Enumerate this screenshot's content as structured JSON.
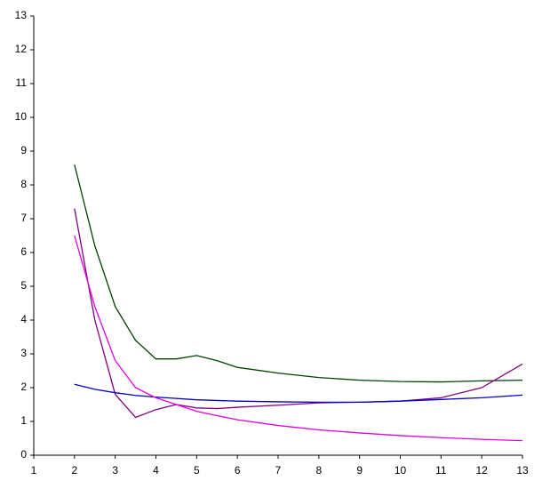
{
  "chart_data": {
    "type": "line",
    "x": [
      2,
      2.5,
      3,
      3.5,
      4,
      4.5,
      5,
      5.5,
      6,
      7,
      8,
      9,
      10,
      11,
      12,
      13
    ],
    "series": [
      {
        "color": "#004000",
        "values": [
          8.6,
          6.2,
          4.4,
          3.4,
          2.85,
          2.85,
          2.95,
          2.8,
          2.6,
          2.43,
          2.3,
          2.22,
          2.18,
          2.17,
          2.2,
          2.22
        ]
      },
      {
        "color": "#800080",
        "values": [
          7.3,
          4.0,
          1.8,
          1.12,
          1.35,
          1.5,
          1.4,
          1.38,
          1.42,
          1.48,
          1.55,
          1.57,
          1.6,
          1.7,
          2.0,
          2.7
        ]
      },
      {
        "color": "#0000c0",
        "values": [
          2.1,
          1.95,
          1.85,
          1.77,
          1.72,
          1.68,
          1.64,
          1.62,
          1.6,
          1.58,
          1.57,
          1.57,
          1.6,
          1.65,
          1.7,
          1.78
        ]
      },
      {
        "color": "#e000e0",
        "values": [
          6.5,
          4.4,
          2.8,
          2.0,
          1.7,
          1.5,
          1.3,
          1.17,
          1.05,
          0.88,
          0.75,
          0.66,
          0.58,
          0.52,
          0.47,
          0.43
        ]
      }
    ],
    "xlim": [
      1,
      13
    ],
    "ylim": [
      0,
      13
    ],
    "xticks": [
      1,
      2,
      3,
      4,
      5,
      6,
      7,
      8,
      9,
      10,
      11,
      12,
      13
    ],
    "yticks": [
      0,
      1,
      2,
      3,
      4,
      5,
      6,
      7,
      8,
      9,
      10,
      11,
      12,
      13
    ]
  }
}
